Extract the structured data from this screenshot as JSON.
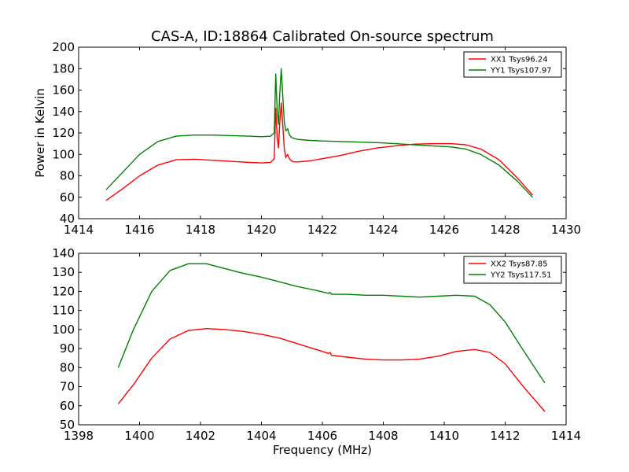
{
  "title": "CAS-A, ID:18864 Calibrated On-source spectrum",
  "chart_data": [
    {
      "type": "line",
      "xlabel": "",
      "ylabel": "Power in Kelvin",
      "xlim": [
        1414,
        1430
      ],
      "ylim": [
        40,
        200
      ],
      "xticks": [
        1414,
        1416,
        1418,
        1420,
        1422,
        1424,
        1426,
        1428,
        1430
      ],
      "yticks": [
        40,
        60,
        80,
        100,
        120,
        140,
        160,
        180,
        200
      ],
      "legend": "top-right",
      "series": [
        {
          "name": "XX1 Tsys96.24",
          "color": "#ff0000",
          "x": [
            1414.9,
            1415.4,
            1416.0,
            1416.6,
            1417.2,
            1417.8,
            1418.4,
            1419.0,
            1419.6,
            1420.0,
            1420.3,
            1420.42,
            1420.47,
            1420.52,
            1420.56,
            1420.6,
            1420.65,
            1420.7,
            1420.75,
            1420.8,
            1420.86,
            1420.92,
            1420.98,
            1421.05,
            1421.2,
            1421.6,
            1422.0,
            1422.6,
            1423.2,
            1423.8,
            1424.4,
            1425.0,
            1425.6,
            1426.2,
            1426.7,
            1427.2,
            1427.8,
            1428.4,
            1428.9
          ],
          "y": [
            57,
            67,
            80,
            90,
            95,
            95.5,
            94.5,
            93.5,
            92.5,
            92,
            92.5,
            96,
            143,
            115,
            106,
            128,
            148,
            128,
            105,
            97,
            100,
            96,
            94,
            93,
            93,
            94,
            96,
            99,
            103,
            106,
            108,
            109.5,
            110,
            110,
            109,
            105,
            95,
            78,
            62
          ]
        },
        {
          "name": "YY1 Tsys107.97",
          "color": "#008000",
          "x": [
            1414.9,
            1415.4,
            1416.0,
            1416.6,
            1417.2,
            1417.8,
            1418.4,
            1419.0,
            1419.6,
            1420.0,
            1420.3,
            1420.42,
            1420.47,
            1420.52,
            1420.56,
            1420.6,
            1420.65,
            1420.7,
            1420.75,
            1420.8,
            1420.86,
            1420.92,
            1420.98,
            1421.05,
            1421.2,
            1421.6,
            1422.0,
            1422.6,
            1423.2,
            1423.8,
            1424.4,
            1425.0,
            1425.6,
            1426.2,
            1426.7,
            1427.2,
            1427.8,
            1428.4,
            1428.9
          ],
          "y": [
            67,
            82,
            100,
            112,
            117,
            118,
            118,
            117.5,
            117,
            116.5,
            117,
            120,
            175,
            140,
            128,
            155,
            180,
            155,
            130,
            122,
            124,
            118,
            116,
            115,
            114,
            113,
            112.5,
            112,
            111.5,
            111,
            110,
            109,
            108,
            107,
            105,
            100,
            90,
            75,
            60
          ]
        }
      ]
    },
    {
      "type": "line",
      "xlabel": "Frequency (MHz)",
      "ylabel": "",
      "xlim": [
        1398,
        1414
      ],
      "ylim": [
        50,
        140
      ],
      "xticks": [
        1398,
        1400,
        1402,
        1404,
        1406,
        1408,
        1410,
        1412,
        1414
      ],
      "yticks": [
        50,
        60,
        70,
        80,
        90,
        100,
        110,
        120,
        130,
        140
      ],
      "legend": "top-right",
      "series": [
        {
          "name": "XX2 Tsys87.85",
          "color": "#ff0000",
          "x": [
            1399.3,
            1399.8,
            1400.4,
            1401.0,
            1401.6,
            1402.2,
            1402.8,
            1403.4,
            1404.0,
            1404.6,
            1405.2,
            1405.8,
            1406.2,
            1406.25,
            1406.3,
            1406.8,
            1407.4,
            1408.0,
            1408.6,
            1409.2,
            1409.8,
            1410.4,
            1411.0,
            1411.5,
            1412.0,
            1412.6,
            1413.3
          ],
          "y": [
            61,
            71,
            85,
            95,
            99.5,
            100.5,
            100,
            99,
            97.5,
            95.5,
            92.5,
            89.5,
            87.5,
            88,
            86.5,
            85.5,
            84.5,
            84,
            84,
            84.5,
            86,
            88.5,
            89.5,
            88,
            82,
            70,
            57
          ]
        },
        {
          "name": "YY2 Tsys117.51",
          "color": "#008000",
          "x": [
            1399.3,
            1399.8,
            1400.4,
            1401.0,
            1401.6,
            1402.2,
            1402.8,
            1403.4,
            1404.0,
            1404.6,
            1405.2,
            1405.8,
            1406.2,
            1406.25,
            1406.3,
            1406.8,
            1407.4,
            1408.0,
            1408.6,
            1409.2,
            1409.8,
            1410.4,
            1411.0,
            1411.5,
            1412.0,
            1412.6,
            1413.3
          ],
          "y": [
            80,
            100,
            120,
            131,
            134.5,
            134.5,
            132,
            129.5,
            127.5,
            125,
            122.5,
            120.5,
            119,
            119.5,
            118.5,
            118.5,
            118,
            118,
            117.5,
            117,
            117.5,
            118,
            117.5,
            113,
            104,
            89,
            72
          ]
        }
      ]
    }
  ]
}
